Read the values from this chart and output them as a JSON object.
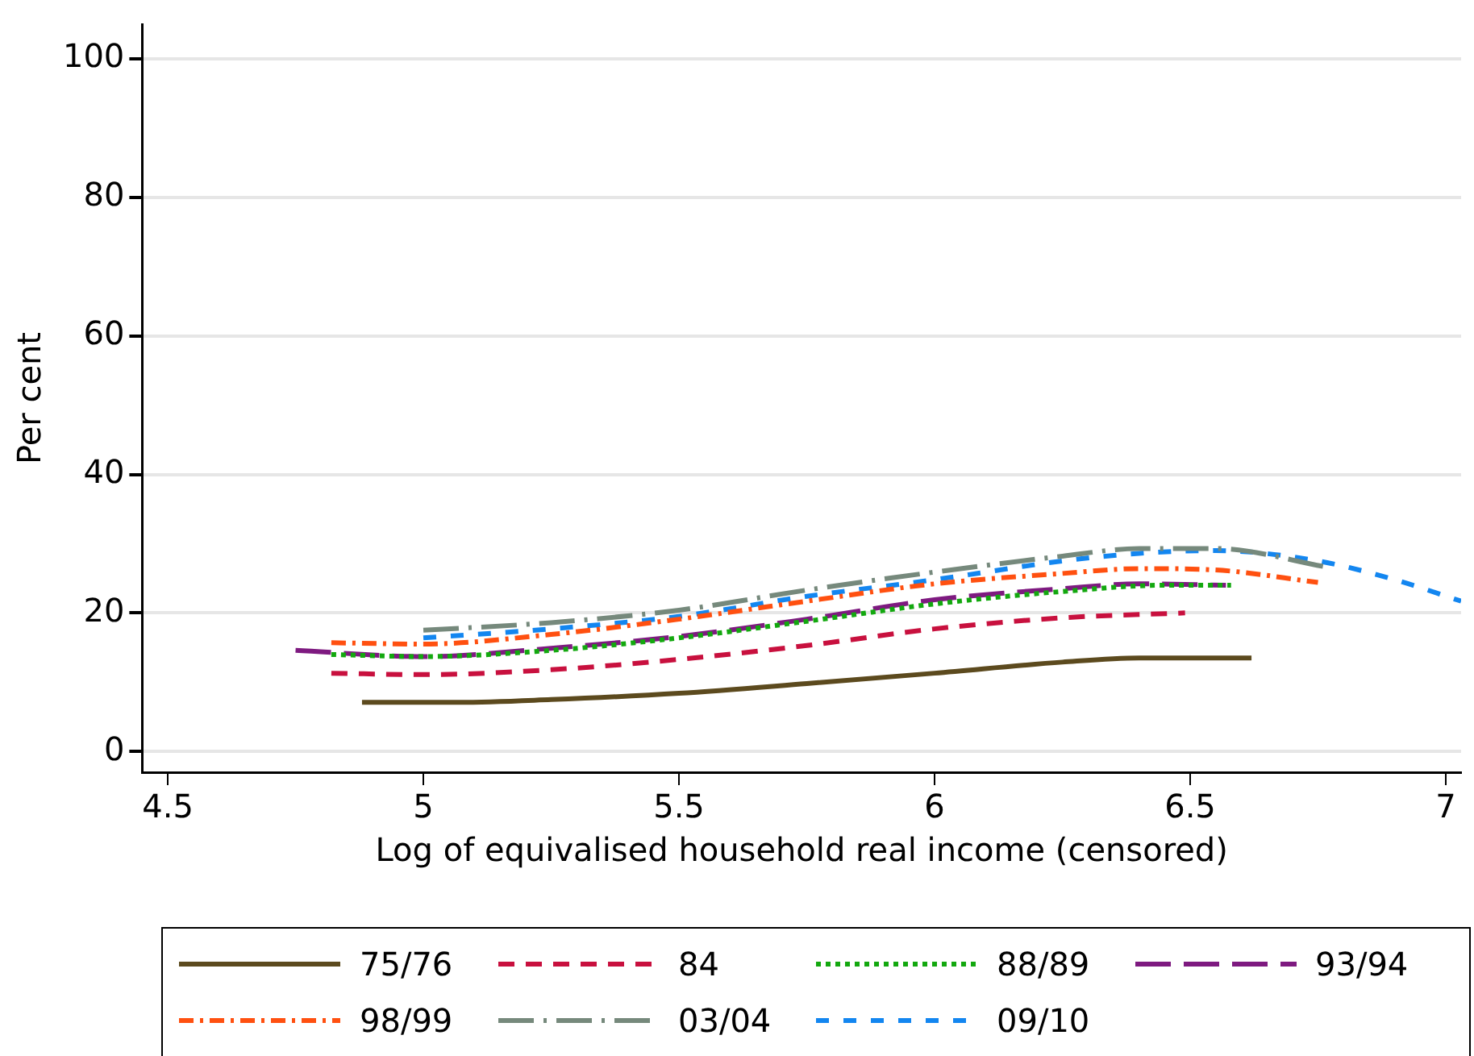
{
  "chart_data": {
    "type": "line",
    "xlabel": "Log of equivalised household real income (censored)",
    "ylabel": "Per cent",
    "xlim": [
      4.45,
      7.03
    ],
    "xticks": [
      4.5,
      5,
      5.5,
      6,
      6.5,
      7
    ],
    "ylim": [
      -3,
      105
    ],
    "yticks": [
      0,
      20,
      40,
      60,
      80,
      100
    ],
    "grid": "y",
    "legend": "bottom",
    "marker": "none",
    "series": [
      {
        "name": "75/76",
        "color": "#5c4a1e",
        "line_style": "solid",
        "x": [
          4.88,
          5.07,
          5.25,
          5.5,
          5.75,
          6.0,
          6.25,
          6.4,
          6.62
        ],
        "values": [
          7.1,
          7.1,
          7.5,
          8.4,
          9.8,
          11.3,
          12.9,
          13.5,
          13.5
        ]
      },
      {
        "name": "84",
        "color": "#c8103e",
        "line_style": "dashed",
        "x": [
          4.82,
          5.0,
          5.25,
          5.5,
          5.75,
          6.0,
          6.25,
          6.49
        ],
        "values": [
          11.3,
          11.1,
          11.8,
          13.3,
          15.3,
          17.7,
          19.3,
          20.0
        ]
      },
      {
        "name": "88/89",
        "color": "#13a80f",
        "line_style": "dotted",
        "x": [
          4.82,
          5.0,
          5.25,
          5.5,
          5.75,
          6.0,
          6.25,
          6.45,
          6.58
        ],
        "values": [
          14.0,
          13.7,
          14.6,
          16.4,
          18.8,
          21.3,
          23.1,
          24.0,
          24.0
        ]
      },
      {
        "name": "93/94",
        "color": "#7e1a80",
        "line_style": "longdash",
        "x": [
          4.75,
          5.0,
          5.25,
          5.5,
          5.75,
          6.0,
          6.25,
          6.4,
          6.57
        ],
        "values": [
          14.6,
          13.7,
          14.9,
          16.6,
          19.1,
          21.9,
          23.5,
          24.2,
          24.0
        ]
      },
      {
        "name": "98/99",
        "color": "#ff5010",
        "line_style": "dashdot",
        "x": [
          4.82,
          5.0,
          5.25,
          5.5,
          5.75,
          6.0,
          6.25,
          6.4,
          6.55,
          6.75
        ],
        "values": [
          15.7,
          15.5,
          16.9,
          19.1,
          21.7,
          24.2,
          25.7,
          26.4,
          26.2,
          24.4
        ]
      },
      {
        "name": "03/04",
        "color": "#76897c",
        "line_style": "longdashdot",
        "x": [
          5.0,
          5.25,
          5.5,
          5.75,
          6.0,
          6.25,
          6.4,
          6.55,
          6.77
        ],
        "values": [
          17.5,
          18.6,
          20.4,
          23.3,
          25.9,
          28.2,
          29.3,
          29.3,
          26.6
        ]
      },
      {
        "name": "09/10",
        "color": "#1386f0",
        "line_style": "shortdash",
        "x": [
          5.0,
          5.25,
          5.5,
          5.75,
          6.0,
          6.25,
          6.4,
          6.55,
          6.75,
          6.9,
          7.03
        ],
        "values": [
          16.4,
          17.7,
          19.5,
          22.4,
          24.8,
          27.5,
          28.6,
          29.0,
          27.5,
          24.8,
          21.7
        ]
      }
    ]
  }
}
